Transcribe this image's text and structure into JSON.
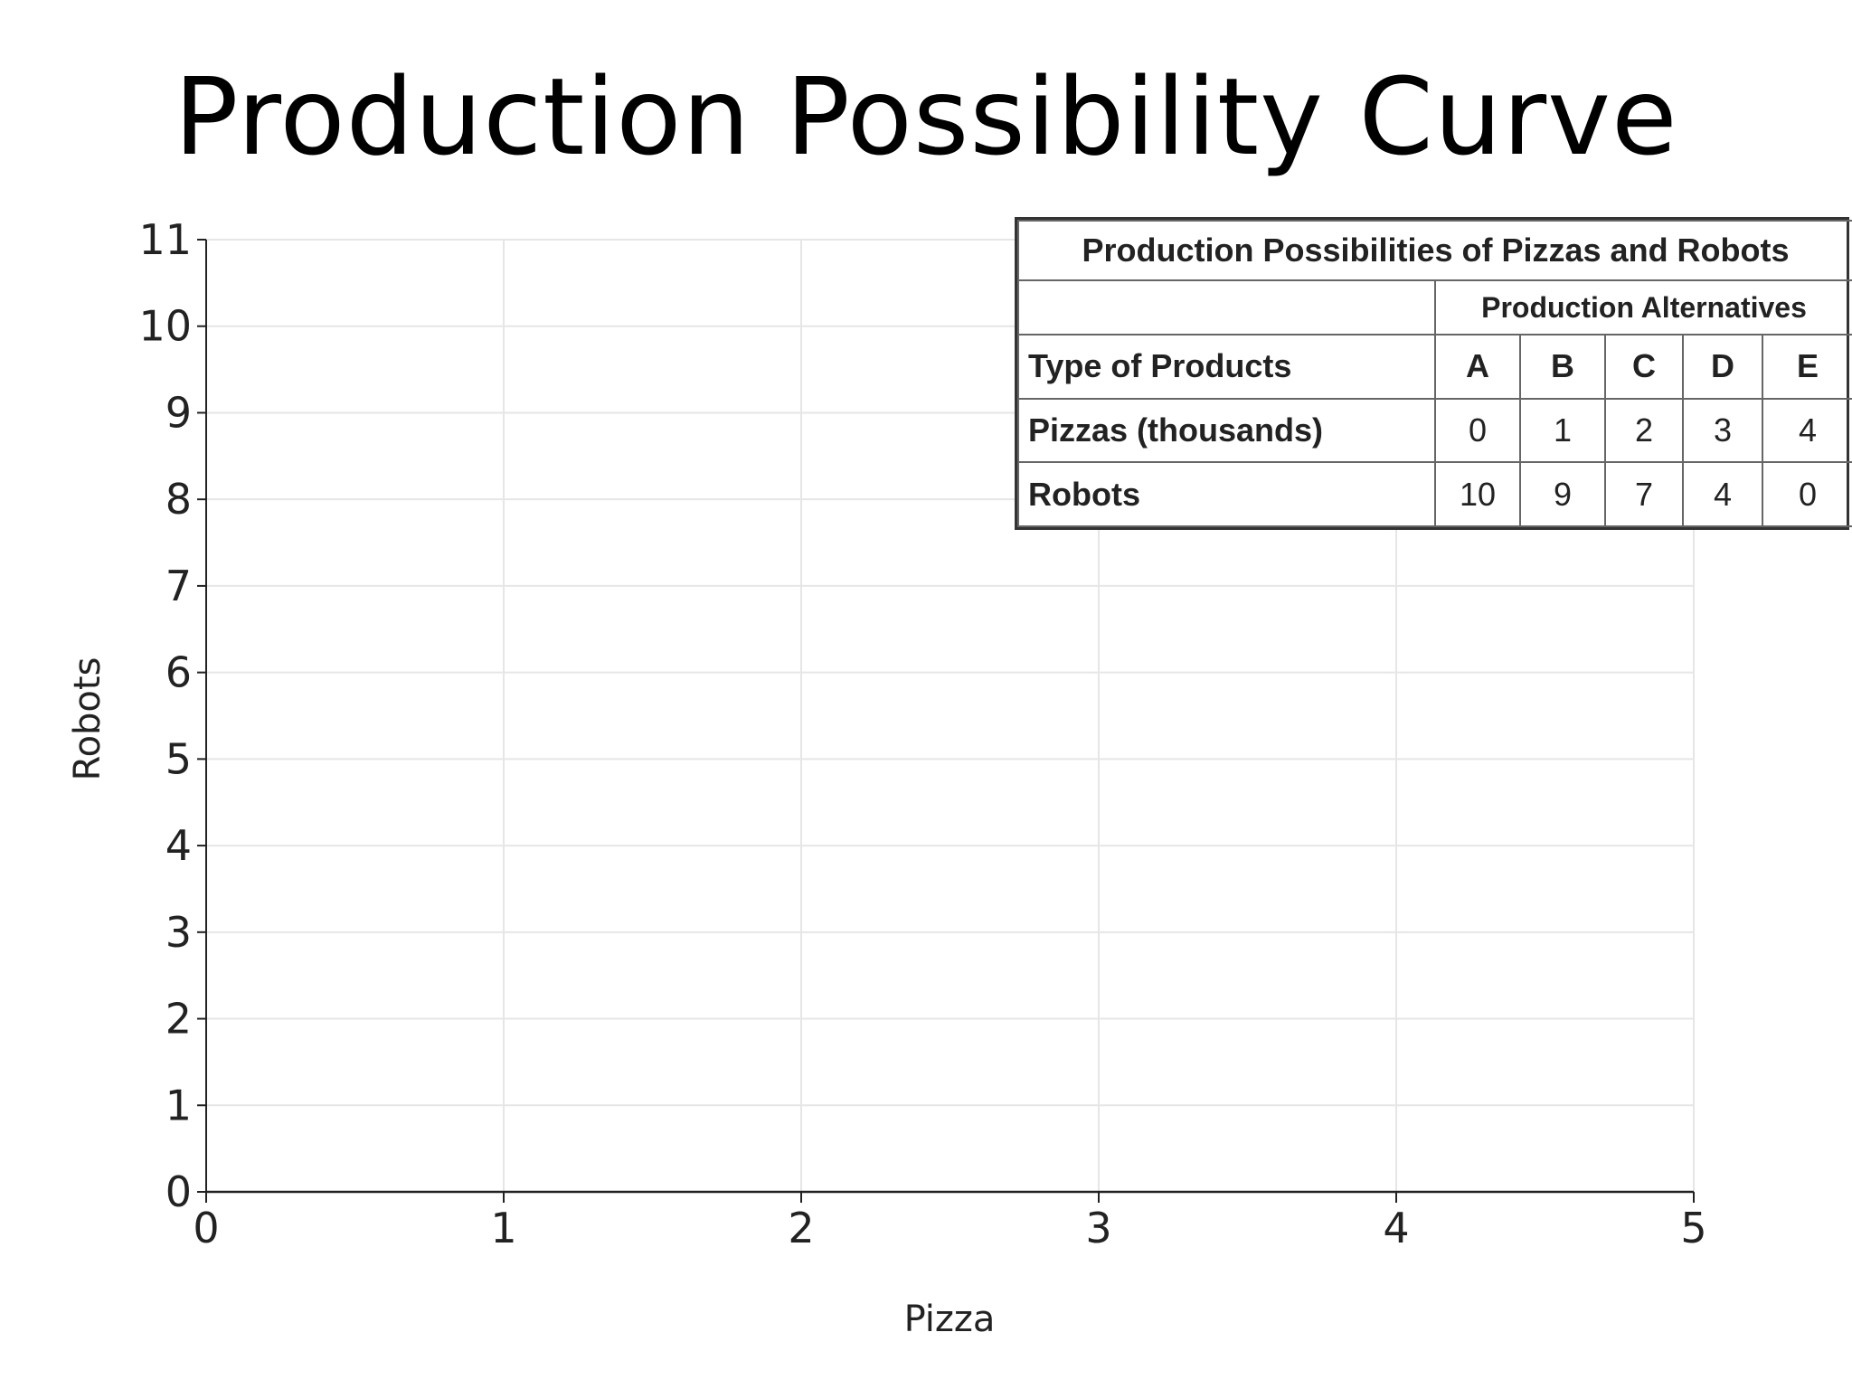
{
  "slide": {
    "title": "Production Possibility Curve"
  },
  "chart_data": {
    "type": "scatter",
    "title": "",
    "xlabel": "Pizza",
    "ylabel": "Robots",
    "xlim": [
      0,
      5
    ],
    "ylim": [
      0,
      11
    ],
    "x_ticks": [
      "0",
      "1",
      "2",
      "3",
      "4",
      "5"
    ],
    "y_ticks": [
      "0",
      "1",
      "2",
      "3",
      "4",
      "5",
      "6",
      "7",
      "8",
      "9",
      "10",
      "11"
    ],
    "grid": true,
    "series": []
  },
  "table": {
    "caption": "Production Possibilities of Pizzas and Robots",
    "group_header": "Production Alternatives",
    "header_label": "Type of Products",
    "columns": [
      "A",
      "B",
      "C",
      "D",
      "E"
    ],
    "rows": [
      {
        "label": "Pizzas (thousands)",
        "values": [
          "0",
          "1",
          "2",
          "3",
          "4"
        ]
      },
      {
        "label": "Robots",
        "values": [
          "10",
          "9",
          "7",
          "4",
          "0"
        ]
      }
    ]
  },
  "colors": {
    "grid": "#e6e6e6",
    "axis": "#222222"
  }
}
